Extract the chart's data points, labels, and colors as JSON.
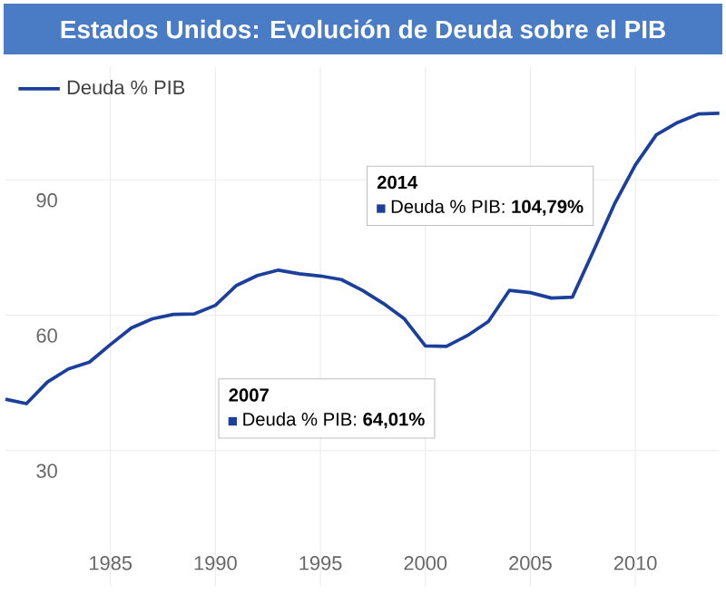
{
  "chart_data": {
    "type": "line",
    "title": "Estados Unidos: Evolución de Deuda sobre el PIB",
    "x": [
      1980,
      1981,
      1982,
      1983,
      1984,
      1985,
      1986,
      1987,
      1988,
      1989,
      1990,
      1991,
      1992,
      1993,
      1994,
      1995,
      1996,
      1997,
      1998,
      1999,
      2000,
      2001,
      2002,
      2003,
      2004,
      2005,
      2006,
      2007,
      2008,
      2009,
      2010,
      2011,
      2012,
      2013,
      2014
    ],
    "series": [
      {
        "name": "Deuda % PIB",
        "color": "#1c3f9c",
        "values": [
          41.4,
          40.4,
          45.2,
          48.1,
          49.6,
          53.5,
          57.2,
          59.2,
          60.2,
          60.3,
          62.2,
          66.6,
          68.8,
          70.0,
          69.2,
          68.7,
          67.9,
          65.5,
          62.6,
          59.2,
          53.2,
          53.1,
          55.5,
          58.6,
          65.5,
          65.0,
          63.8,
          64.01,
          74.2,
          84.6,
          93.3,
          100.0,
          102.7,
          104.6,
          104.79
        ]
      }
    ],
    "xlim": [
      1980,
      2014
    ],
    "ylim": [
      0,
      115
    ],
    "xticks": [
      1985,
      1990,
      1995,
      2000,
      2005,
      2010
    ],
    "yticks": [
      30,
      60,
      90
    ],
    "grid": true,
    "legend": "top left",
    "marker": "none",
    "line_style": "solid",
    "annotations": [
      "2007",
      "Deuda % PIB: **64,01%**",
      "2014",
      "Deuda % PIB: **104,79%**"
    ]
  }
}
